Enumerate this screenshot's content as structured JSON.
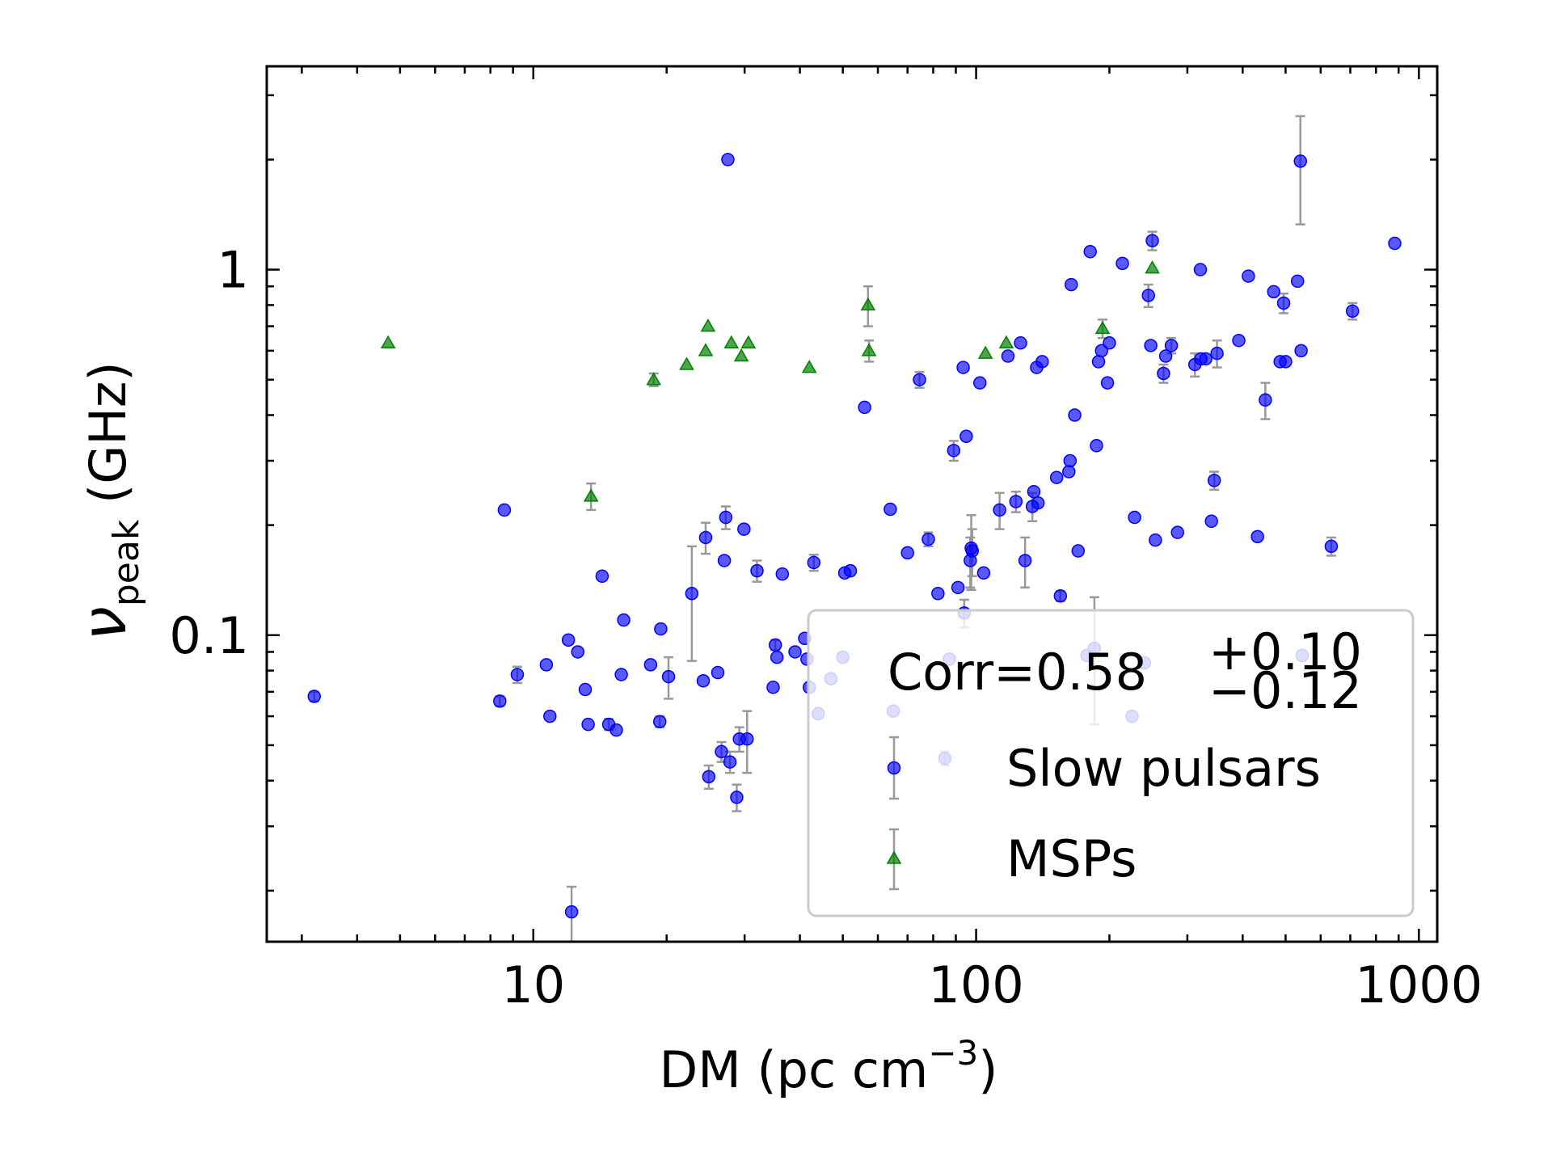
{
  "colors": {
    "slow": "#0000ff",
    "msp": "#008000",
    "errorbar": "#999999",
    "legend_border": "#cccccc"
  },
  "chart_data": {
    "type": "scatter",
    "xlabel": {
      "main": "DM (pc cm",
      "sup": "−3",
      "close": ")"
    },
    "ylabel": {
      "symbol": "ν",
      "sub": "peak",
      "unit": " (GHz)"
    },
    "x_scale": "log",
    "y_scale": "log",
    "xlim": [
      2.5,
      1100
    ],
    "ylim": [
      0.0145,
      3.6
    ],
    "x_ticks": [
      {
        "value": 10,
        "label": "10"
      },
      {
        "value": 100,
        "label": "100"
      },
      {
        "value": 1000,
        "label": "1000"
      }
    ],
    "y_ticks": [
      {
        "value": 0.1,
        "label": "0.1"
      },
      {
        "value": 1,
        "label": "1"
      }
    ],
    "grid": false,
    "legend": {
      "placement": "lower-right",
      "corr_label": "Corr=0.58",
      "corr_sup": "+0.10",
      "corr_sub": "−0.12",
      "entries": [
        "Slow pulsars",
        "MSPs"
      ]
    },
    "series": [
      {
        "name": "Slow pulsars",
        "marker": "circle",
        "points": [
          {
            "x": 3.2,
            "y": 0.068,
            "err": 0.002
          },
          {
            "x": 8.4,
            "y": 0.066,
            "err": 0.002
          },
          {
            "x": 8.6,
            "y": 0.22
          },
          {
            "x": 9.2,
            "y": 0.078,
            "err": 0.004
          },
          {
            "x": 10.7,
            "y": 0.083
          },
          {
            "x": 10.9,
            "y": 0.06
          },
          {
            "x": 12.0,
            "y": 0.097
          },
          {
            "x": 12.2,
            "y": 0.0175,
            "err": 0.003
          },
          {
            "x": 12.6,
            "y": 0.09
          },
          {
            "x": 13.1,
            "y": 0.071
          },
          {
            "x": 13.3,
            "y": 0.057
          },
          {
            "x": 14.3,
            "y": 0.145
          },
          {
            "x": 14.8,
            "y": 0.057,
            "err": 0.002
          },
          {
            "x": 15.4,
            "y": 0.055
          },
          {
            "x": 15.8,
            "y": 0.078
          },
          {
            "x": 16.0,
            "y": 0.11
          },
          {
            "x": 18.4,
            "y": 0.083
          },
          {
            "x": 19.3,
            "y": 0.058,
            "err": 0.002
          },
          {
            "x": 19.4,
            "y": 0.104
          },
          {
            "x": 20.2,
            "y": 0.077,
            "err": 0.01
          },
          {
            "x": 22.8,
            "y": 0.13,
            "err": 0.045
          },
          {
            "x": 24.2,
            "y": 0.075
          },
          {
            "x": 24.5,
            "y": 0.185,
            "err": 0.018
          },
          {
            "x": 24.9,
            "y": 0.041,
            "err": 0.003
          },
          {
            "x": 26.1,
            "y": 0.079
          },
          {
            "x": 26.6,
            "y": 0.048,
            "err": 0.003
          },
          {
            "x": 27.0,
            "y": 0.16
          },
          {
            "x": 27.2,
            "y": 0.21,
            "err": 0.015
          },
          {
            "x": 27.5,
            "y": 2.0
          },
          {
            "x": 27.8,
            "y": 0.045,
            "err": 0.003
          },
          {
            "x": 28.8,
            "y": 0.036,
            "err": 0.003
          },
          {
            "x": 29.2,
            "y": 0.052,
            "err": 0.004
          },
          {
            "x": 29.9,
            "y": 0.195
          },
          {
            "x": 30.4,
            "y": 0.052,
            "err": 0.01
          },
          {
            "x": 32.0,
            "y": 0.15,
            "err": 0.01
          },
          {
            "x": 34.8,
            "y": 0.072
          },
          {
            "x": 35.2,
            "y": 0.094,
            "err": 0.003
          },
          {
            "x": 35.5,
            "y": 0.087
          },
          {
            "x": 36.5,
            "y": 0.147
          },
          {
            "x": 39.0,
            "y": 0.09
          },
          {
            "x": 41.0,
            "y": 0.098
          },
          {
            "x": 41.5,
            "y": 0.086
          },
          {
            "x": 42.0,
            "y": 0.072
          },
          {
            "x": 43.0,
            "y": 0.158,
            "err": 0.008
          },
          {
            "x": 44.0,
            "y": 0.061
          },
          {
            "x": 47.0,
            "y": 0.076
          },
          {
            "x": 50.0,
            "y": 0.087
          },
          {
            "x": 50.5,
            "y": 0.148
          },
          {
            "x": 52.0,
            "y": 0.15
          },
          {
            "x": 56.0,
            "y": 0.42
          },
          {
            "x": 64.0,
            "y": 0.221
          },
          {
            "x": 65.0,
            "y": 0.062
          },
          {
            "x": 70.0,
            "y": 0.168
          },
          {
            "x": 74.5,
            "y": 0.5,
            "err": 0.025
          },
          {
            "x": 78.0,
            "y": 0.183,
            "err": 0.008
          },
          {
            "x": 82.0,
            "y": 0.13
          },
          {
            "x": 85.0,
            "y": 0.046,
            "err": 0.002
          },
          {
            "x": 87.0,
            "y": 0.086
          },
          {
            "x": 89.0,
            "y": 0.32,
            "err": 0.02
          },
          {
            "x": 91.0,
            "y": 0.135
          },
          {
            "x": 93.5,
            "y": 0.54
          },
          {
            "x": 94.0,
            "y": 0.115,
            "err": 0.01
          },
          {
            "x": 95.0,
            "y": 0.35
          },
          {
            "x": 97.0,
            "y": 0.16,
            "err": 0.025
          },
          {
            "x": 97.5,
            "y": 0.173,
            "err": 0.04
          },
          {
            "x": 98.0,
            "y": 0.17,
            "err": 0.025
          },
          {
            "x": 102.0,
            "y": 0.49
          },
          {
            "x": 104.0,
            "y": 0.148
          },
          {
            "x": 113.0,
            "y": 0.22,
            "err": 0.025
          },
          {
            "x": 118.0,
            "y": 0.58
          },
          {
            "x": 123.0,
            "y": 0.232,
            "err": 0.015
          },
          {
            "x": 126.0,
            "y": 0.63
          },
          {
            "x": 129.0,
            "y": 0.16,
            "err": 0.025
          },
          {
            "x": 134.0,
            "y": 0.225,
            "err": 0.02
          },
          {
            "x": 135.0,
            "y": 0.247
          },
          {
            "x": 137.0,
            "y": 0.54
          },
          {
            "x": 138.0,
            "y": 0.23
          },
          {
            "x": 141.0,
            "y": 0.56
          },
          {
            "x": 152.0,
            "y": 0.27
          },
          {
            "x": 155.0,
            "y": 0.128,
            "err": 0.004
          },
          {
            "x": 162.0,
            "y": 0.28
          },
          {
            "x": 163.0,
            "y": 0.3
          },
          {
            "x": 164.0,
            "y": 0.91
          },
          {
            "x": 167.0,
            "y": 0.4
          },
          {
            "x": 170.0,
            "y": 0.17
          },
          {
            "x": 178.0,
            "y": 0.088
          },
          {
            "x": 181.0,
            "y": 1.12
          },
          {
            "x": 185.0,
            "y": 0.092,
            "err": 0.035
          },
          {
            "x": 187.0,
            "y": 0.33
          },
          {
            "x": 189.0,
            "y": 0.56
          },
          {
            "x": 192.0,
            "y": 0.6
          },
          {
            "x": 198.0,
            "y": 0.49
          },
          {
            "x": 200.0,
            "y": 0.63
          },
          {
            "x": 214.0,
            "y": 1.04
          },
          {
            "x": 225.0,
            "y": 0.06
          },
          {
            "x": 228.0,
            "y": 0.21
          },
          {
            "x": 240.0,
            "y": 0.084
          },
          {
            "x": 245.0,
            "y": 0.85,
            "err": 0.06
          },
          {
            "x": 248.0,
            "y": 0.62
          },
          {
            "x": 250.0,
            "y": 1.2,
            "err": 0.07
          },
          {
            "x": 254.0,
            "y": 0.182
          },
          {
            "x": 265.0,
            "y": 0.52,
            "err": 0.03
          },
          {
            "x": 268.0,
            "y": 0.58
          },
          {
            "x": 276.0,
            "y": 0.62,
            "err": 0.03
          },
          {
            "x": 285.0,
            "y": 0.191
          },
          {
            "x": 312.0,
            "y": 0.55,
            "err": 0.04
          },
          {
            "x": 321.0,
            "y": 1.0
          },
          {
            "x": 322.0,
            "y": 0.57
          },
          {
            "x": 330.0,
            "y": 0.57
          },
          {
            "x": 340.0,
            "y": 0.205
          },
          {
            "x": 345.0,
            "y": 0.265,
            "err": 0.015
          },
          {
            "x": 350.0,
            "y": 0.59,
            "err": 0.05
          },
          {
            "x": 392.0,
            "y": 0.64
          },
          {
            "x": 412.0,
            "y": 0.96
          },
          {
            "x": 432.0,
            "y": 0.186
          },
          {
            "x": 450.0,
            "y": 0.44,
            "err": 0.05
          },
          {
            "x": 470.0,
            "y": 0.87
          },
          {
            "x": 486.0,
            "y": 0.56
          },
          {
            "x": 495.0,
            "y": 0.81,
            "err": 0.05
          },
          {
            "x": 500.0,
            "y": 0.56
          },
          {
            "x": 532.0,
            "y": 0.93
          },
          {
            "x": 540.0,
            "y": 1.98,
            "err": 0.65
          },
          {
            "x": 542.0,
            "y": 0.6
          },
          {
            "x": 545.0,
            "y": 0.088
          },
          {
            "x": 634.0,
            "y": 0.175,
            "err": 0.01
          },
          {
            "x": 708.0,
            "y": 0.77,
            "err": 0.04
          },
          {
            "x": 882.0,
            "y": 1.18
          }
        ]
      },
      {
        "name": "MSPs",
        "marker": "triangle",
        "points": [
          {
            "x": 4.7,
            "y": 0.63
          },
          {
            "x": 13.5,
            "y": 0.24,
            "err": 0.02
          },
          {
            "x": 18.7,
            "y": 0.5,
            "err": 0.02
          },
          {
            "x": 22.2,
            "y": 0.55
          },
          {
            "x": 24.5,
            "y": 0.6
          },
          {
            "x": 24.8,
            "y": 0.7
          },
          {
            "x": 28.0,
            "y": 0.63
          },
          {
            "x": 29.5,
            "y": 0.58
          },
          {
            "x": 30.6,
            "y": 0.63
          },
          {
            "x": 42.0,
            "y": 0.54
          },
          {
            "x": 57.0,
            "y": 0.8,
            "err": 0.1
          },
          {
            "x": 57.3,
            "y": 0.6,
            "err": 0.04
          },
          {
            "x": 105.0,
            "y": 0.59
          },
          {
            "x": 117.0,
            "y": 0.63
          },
          {
            "x": 193.0,
            "y": 0.69,
            "err": 0.04
          },
          {
            "x": 250.0,
            "y": 1.01
          }
        ]
      }
    ]
  }
}
